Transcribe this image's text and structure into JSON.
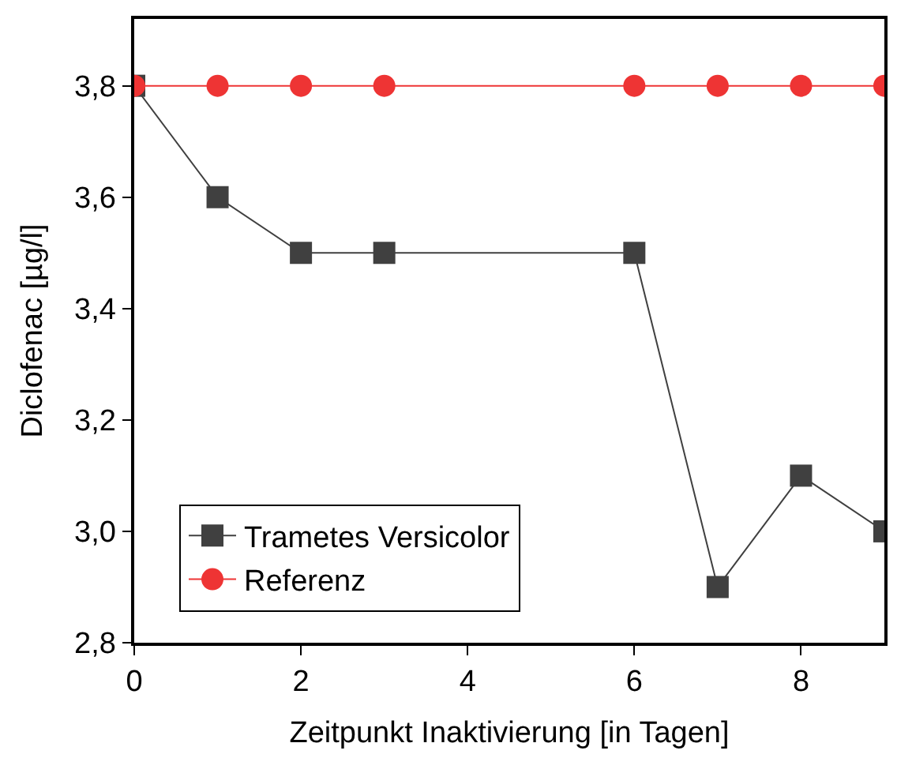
{
  "chart_data": {
    "type": "line",
    "xlabel": "Zeitpunkt Inaktivierung [in Tagen]",
    "ylabel": "Diclofenac [µg/l]",
    "x": [
      0,
      1,
      2,
      3,
      6,
      7,
      8,
      9
    ],
    "series": [
      {
        "name": "Trametes Versicolor",
        "color": "#404040",
        "marker": "square",
        "values": [
          3.8,
          3.6,
          3.5,
          3.5,
          3.5,
          2.9,
          3.1,
          3.0
        ]
      },
      {
        "name": "Referenz",
        "color": "#ee3434",
        "marker": "circle",
        "values": [
          3.8,
          3.8,
          3.8,
          3.8,
          3.8,
          3.8,
          3.8,
          3.8
        ]
      }
    ],
    "xlim": [
      0,
      9
    ],
    "xticks": [
      0,
      2,
      4,
      6,
      8
    ],
    "ylim": [
      2.8,
      3.92
    ],
    "yticks": [
      {
        "value": 2.8,
        "label": "2,8"
      },
      {
        "value": 3.0,
        "label": "3,0"
      },
      {
        "value": 3.2,
        "label": "3,2"
      },
      {
        "value": 3.4,
        "label": "3,4"
      },
      {
        "value": 3.6,
        "label": "3,6"
      },
      {
        "value": 3.8,
        "label": "3,8"
      }
    ],
    "legend": "bottom left",
    "line_style": "solid"
  }
}
